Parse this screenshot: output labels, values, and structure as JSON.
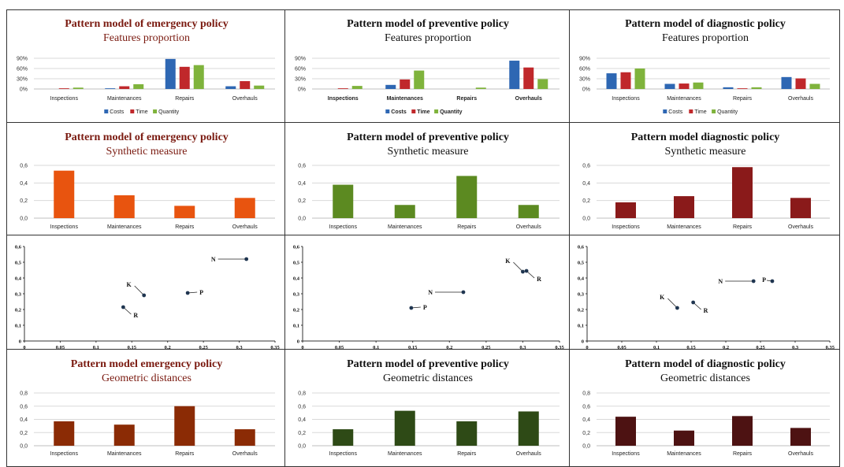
{
  "colors": {
    "costs": "#2e67b3",
    "time": "#c0282b",
    "quantity": "#7fb33c",
    "emergency": "#e8540f",
    "preventive": "#5c8a21",
    "diagnostic": "#8a1a1a",
    "geo_emergency": "#8b2b05",
    "geo_preventive": "#2e4a16",
    "geo_diagnostic": "#4d1212",
    "title_red": "#7a1a10",
    "title_black": "#111111"
  },
  "charts": [
    {
      "id": "feat-emergency",
      "type": "bar",
      "title": "Pattern model of emergency policy",
      "subtitle": "Features proportion",
      "title_color": "title_red",
      "categories": [
        "Inspections",
        "Maintenances",
        "Repairs",
        "Overhauls"
      ],
      "bold_categories": false,
      "yticks": [
        "0%",
        "30%",
        "60%",
        "90%"
      ],
      "ylim": [
        0,
        90
      ],
      "series": [
        {
          "name": "Costs",
          "color": "costs",
          "values": [
            0,
            2,
            88,
            8
          ]
        },
        {
          "name": "Time",
          "color": "time",
          "values": [
            2,
            8,
            65,
            23
          ]
        },
        {
          "name": "Quantity",
          "color": "quantity",
          "values": [
            4,
            14,
            70,
            10
          ]
        }
      ],
      "legend": [
        "Costs",
        "Time",
        "Quantity"
      ]
    },
    {
      "id": "feat-preventive",
      "type": "bar",
      "title": "Pattern model of preventive policy",
      "subtitle": "Features proportion",
      "title_color": "title_black",
      "categories": [
        "Inspections",
        "Maintenances",
        "Repairs",
        "Overhauls"
      ],
      "bold_categories": true,
      "yticks": [
        "0%",
        "30%",
        "60%",
        "90%"
      ],
      "ylim": [
        0,
        90
      ],
      "series": [
        {
          "name": "Costs",
          "color": "costs",
          "values": [
            0,
            12,
            0,
            83
          ]
        },
        {
          "name": "Time",
          "color": "time",
          "values": [
            2,
            28,
            0,
            63
          ]
        },
        {
          "name": "Quantity",
          "color": "quantity",
          "values": [
            9,
            54,
            4,
            29
          ]
        }
      ],
      "legend": [
        "Costs",
        "Time",
        "Quantity"
      ]
    },
    {
      "id": "feat-diagnostic",
      "type": "bar",
      "title": "Pattern model of diagnostic policy",
      "subtitle": "Features proportion",
      "title_color": "title_black",
      "categories": [
        "Inspections",
        "Maintenances",
        "Repairs",
        "Overhauls"
      ],
      "bold_categories": false,
      "yticks": [
        "0%",
        "30%",
        "60%",
        "90%"
      ],
      "ylim": [
        0,
        90
      ],
      "series": [
        {
          "name": "Costs",
          "color": "costs",
          "values": [
            46,
            15,
            5,
            35
          ]
        },
        {
          "name": "Time",
          "color": "time",
          "values": [
            49,
            16,
            2,
            31
          ]
        },
        {
          "name": "Quantity",
          "color": "quantity",
          "values": [
            60,
            19,
            5,
            15
          ]
        }
      ],
      "legend": [
        "Costs",
        "Time",
        "Quantity"
      ]
    },
    {
      "id": "syn-emergency",
      "type": "bar",
      "title": "Pattern model of emergency policy",
      "subtitle": "Synthetic measure",
      "title_color": "title_red",
      "categories": [
        "Inspections",
        "Maintenances",
        "Repairs",
        "Overhauls"
      ],
      "bold_categories": false,
      "yticks": [
        "0,0",
        "0,2",
        "0,4",
        "0,6"
      ],
      "ylim": [
        0,
        0.6
      ],
      "series": [
        {
          "name": "",
          "color": "emergency",
          "values": [
            0.54,
            0.26,
            0.14,
            0.23
          ]
        }
      ],
      "legend": []
    },
    {
      "id": "syn-preventive",
      "type": "bar",
      "title": "Pattern model of preventive policy",
      "subtitle": "Synthetic measure",
      "title_color": "title_black",
      "categories": [
        "Inspections",
        "Maintenances",
        "Repairs",
        "Overhauls"
      ],
      "bold_categories": false,
      "yticks": [
        "0,0",
        "0,2",
        "0,4",
        "0,6"
      ],
      "ylim": [
        0,
        0.6
      ],
      "series": [
        {
          "name": "",
          "color": "preventive",
          "values": [
            0.38,
            0.15,
            0.48,
            0.15
          ]
        }
      ],
      "legend": []
    },
    {
      "id": "syn-diagnostic",
      "type": "bar",
      "title": "Pattern model diagnostic policy",
      "subtitle": "Synthetic measure",
      "title_color": "title_black",
      "categories": [
        "Inspections",
        "Maintenances",
        "Repairs",
        "Overhauls"
      ],
      "bold_categories": false,
      "yticks": [
        "0,0",
        "0,2",
        "0,4",
        "0,6"
      ],
      "ylim": [
        0,
        0.6
      ],
      "series": [
        {
          "name": "",
          "color": "diagnostic",
          "values": [
            0.18,
            0.25,
            0.58,
            0.23
          ]
        }
      ],
      "legend": []
    },
    {
      "id": "sc-emergency",
      "type": "scatter",
      "xticks": [
        "0",
        "0,05",
        "0,1",
        "0,15",
        "0,2",
        "0,25",
        "0,3",
        "0,35"
      ],
      "xlim": [
        0,
        0.35
      ],
      "yticks": [
        "0",
        "0,1",
        "0,2",
        "0,3",
        "0,4",
        "0,5",
        "0,6"
      ],
      "ylim": [
        0,
        0.6
      ],
      "last_xtick_clip": false,
      "points": [
        {
          "label": "K",
          "x": 0.167,
          "y": 0.29,
          "label_side": "upleft"
        },
        {
          "label": "R",
          "x": 0.138,
          "y": 0.215,
          "label_side": "downright"
        },
        {
          "label": "P",
          "x": 0.228,
          "y": 0.305,
          "label_side": "right"
        },
        {
          "label": "N",
          "x": 0.31,
          "y": 0.52,
          "label_side": "left"
        }
      ]
    },
    {
      "id": "sc-preventive",
      "type": "scatter",
      "xticks": [
        "0",
        "0,05",
        "0,1",
        "0,15",
        "0,2",
        "0,25",
        "0,3",
        "0,35"
      ],
      "xlim": [
        0,
        0.35
      ],
      "yticks": [
        "0",
        "0,1",
        "0,2",
        "0,3",
        "0,4",
        "0,5",
        "0,6"
      ],
      "ylim": [
        0,
        0.6
      ],
      "last_xtick_clip": false,
      "points": [
        {
          "label": "P",
          "x": 0.148,
          "y": 0.21,
          "label_side": "right"
        },
        {
          "label": "N",
          "x": 0.219,
          "y": 0.31,
          "label_side": "left"
        },
        {
          "label": "K",
          "x": 0.3,
          "y": 0.44,
          "label_side": "upleft"
        },
        {
          "label": "R",
          "x": 0.305,
          "y": 0.445,
          "label_side": "downright"
        }
      ]
    },
    {
      "id": "sc-diagnostic",
      "type": "scatter",
      "xticks": [
        "0",
        "0,05",
        "0,1",
        "0,15",
        "0,2",
        "0,25",
        "0,3",
        "0,35"
      ],
      "xlim": [
        0,
        0.35
      ],
      "yticks": [
        "0",
        "0,1",
        "0,2",
        "0,3",
        "0,4",
        "0,5",
        "0,6"
      ],
      "ylim": [
        0,
        0.6
      ],
      "last_xtick_clip": true,
      "points": [
        {
          "label": "K",
          "x": 0.13,
          "y": 0.21,
          "label_side": "upleft"
        },
        {
          "label": "R",
          "x": 0.153,
          "y": 0.245,
          "label_side": "downright"
        },
        {
          "label": "N",
          "x": 0.24,
          "y": 0.38,
          "label_side": "left"
        },
        {
          "label": "P",
          "x": 0.267,
          "y": 0.38,
          "label_side": "leftnear"
        }
      ]
    },
    {
      "id": "geo-emergency",
      "type": "bar",
      "title": "Pattern model emergency policy",
      "subtitle": "Geometric distances",
      "title_color": "title_red",
      "categories": [
        "Inspections",
        "Maintenances",
        "Repairs",
        "Overhauls"
      ],
      "bold_categories": false,
      "yticks": [
        "0,0",
        "0,2",
        "0,4",
        "0,6",
        "0,8"
      ],
      "ylim": [
        0,
        0.8
      ],
      "series": [
        {
          "name": "",
          "color": "geo_emergency",
          "values": [
            0.37,
            0.32,
            0.6,
            0.25
          ]
        }
      ],
      "legend": []
    },
    {
      "id": "geo-preventive",
      "type": "bar",
      "title_parts": [
        "Pattern model of",
        " preventive policy"
      ],
      "title": "Pattern model of preventive policy",
      "subtitle": "Geometric distances",
      "title_color": "title_black",
      "categories": [
        "Inspections",
        "Maintenances",
        "Repairs",
        "Overhauls"
      ],
      "bold_categories": false,
      "yticks": [
        "0,0",
        "0,2",
        "0,4",
        "0,6",
        "0,8"
      ],
      "ylim": [
        0,
        0.8
      ],
      "series": [
        {
          "name": "",
          "color": "geo_preventive",
          "values": [
            0.25,
            0.53,
            0.37,
            0.52
          ]
        }
      ],
      "legend": []
    },
    {
      "id": "geo-diagnostic",
      "type": "bar",
      "title": "Pattern model of diagnostic policy",
      "subtitle": "Geometric distances",
      "title_color": "title_black",
      "categories": [
        "Inspections",
        "Maintenances",
        "Repairs",
        "Overhauls"
      ],
      "bold_categories": false,
      "yticks": [
        "0,0",
        "0,2",
        "0,4",
        "0,6",
        "0,8"
      ],
      "ylim": [
        0,
        0.8
      ],
      "series": [
        {
          "name": "",
          "color": "geo_diagnostic",
          "values": [
            0.44,
            0.23,
            0.45,
            0.27
          ]
        }
      ],
      "legend": []
    }
  ],
  "chart_data": [
    {
      "type": "bar",
      "title": "Pattern model of emergency policy",
      "subtitle": "Features proportion",
      "categories": [
        "Inspections",
        "Maintenances",
        "Repairs",
        "Overhauls"
      ],
      "series": [
        {
          "name": "Costs",
          "values": [
            0,
            2,
            88,
            8
          ]
        },
        {
          "name": "Time",
          "values": [
            2,
            8,
            65,
            23
          ]
        },
        {
          "name": "Quantity",
          "values": [
            4,
            14,
            70,
            10
          ]
        }
      ],
      "ylim": [
        0,
        90
      ]
    },
    {
      "type": "bar",
      "title": "Pattern model of preventive policy",
      "subtitle": "Features proportion",
      "categories": [
        "Inspections",
        "Maintenances",
        "Repairs",
        "Overhauls"
      ],
      "series": [
        {
          "name": "Costs",
          "values": [
            0,
            12,
            0,
            83
          ]
        },
        {
          "name": "Time",
          "values": [
            2,
            28,
            0,
            63
          ]
        },
        {
          "name": "Quantity",
          "values": [
            9,
            54,
            4,
            29
          ]
        }
      ],
      "ylim": [
        0,
        90
      ]
    },
    {
      "type": "bar",
      "title": "Pattern model of diagnostic policy",
      "subtitle": "Features proportion",
      "categories": [
        "Inspections",
        "Maintenances",
        "Repairs",
        "Overhauls"
      ],
      "series": [
        {
          "name": "Costs",
          "values": [
            46,
            15,
            5,
            35
          ]
        },
        {
          "name": "Time",
          "values": [
            49,
            16,
            2,
            31
          ]
        },
        {
          "name": "Quantity",
          "values": [
            60,
            19,
            5,
            15
          ]
        }
      ],
      "ylim": [
        0,
        90
      ]
    },
    {
      "type": "bar",
      "title": "Pattern model of emergency policy",
      "subtitle": "Synthetic measure",
      "categories": [
        "Inspections",
        "Maintenances",
        "Repairs",
        "Overhauls"
      ],
      "values": [
        0.54,
        0.26,
        0.14,
        0.23
      ],
      "ylim": [
        0,
        0.6
      ]
    },
    {
      "type": "bar",
      "title": "Pattern model of preventive policy",
      "subtitle": "Synthetic measure",
      "categories": [
        "Inspections",
        "Maintenances",
        "Repairs",
        "Overhauls"
      ],
      "values": [
        0.38,
        0.15,
        0.48,
        0.15
      ],
      "ylim": [
        0,
        0.6
      ]
    },
    {
      "type": "bar",
      "title": "Pattern model diagnostic policy",
      "subtitle": "Synthetic measure",
      "categories": [
        "Inspections",
        "Maintenances",
        "Repairs",
        "Overhauls"
      ],
      "values": [
        0.18,
        0.25,
        0.58,
        0.23
      ],
      "ylim": [
        0,
        0.6
      ]
    },
    {
      "type": "scatter",
      "points": [
        {
          "label": "K",
          "x": 0.167,
          "y": 0.29
        },
        {
          "label": "R",
          "x": 0.138,
          "y": 0.215
        },
        {
          "label": "P",
          "x": 0.228,
          "y": 0.305
        },
        {
          "label": "N",
          "x": 0.31,
          "y": 0.52
        }
      ],
      "xlim": [
        0,
        0.35
      ],
      "ylim": [
        0,
        0.6
      ]
    },
    {
      "type": "scatter",
      "points": [
        {
          "label": "P",
          "x": 0.148,
          "y": 0.21
        },
        {
          "label": "N",
          "x": 0.219,
          "y": 0.31
        },
        {
          "label": "K",
          "x": 0.3,
          "y": 0.44
        },
        {
          "label": "R",
          "x": 0.305,
          "y": 0.445
        }
      ],
      "xlim": [
        0,
        0.35
      ],
      "ylim": [
        0,
        0.6
      ]
    },
    {
      "type": "scatter",
      "points": [
        {
          "label": "K",
          "x": 0.13,
          "y": 0.21
        },
        {
          "label": "R",
          "x": 0.153,
          "y": 0.245
        },
        {
          "label": "N",
          "x": 0.24,
          "y": 0.38
        },
        {
          "label": "P",
          "x": 0.267,
          "y": 0.38
        }
      ],
      "xlim": [
        0,
        0.35
      ],
      "ylim": [
        0,
        0.6
      ]
    },
    {
      "type": "bar",
      "title": "Pattern model emergency policy",
      "subtitle": "Geometric distances",
      "categories": [
        "Inspections",
        "Maintenances",
        "Repairs",
        "Overhauls"
      ],
      "values": [
        0.37,
        0.32,
        0.6,
        0.25
      ],
      "ylim": [
        0,
        0.8
      ]
    },
    {
      "type": "bar",
      "title": "Pattern model of preventive policy",
      "subtitle": "Geometric distances",
      "categories": [
        "Inspections",
        "Maintenances",
        "Repairs",
        "Overhauls"
      ],
      "values": [
        0.25,
        0.53,
        0.37,
        0.52
      ],
      "ylim": [
        0,
        0.8
      ]
    },
    {
      "type": "bar",
      "title": "Pattern model of diagnostic policy",
      "subtitle": "Geometric distances",
      "categories": [
        "Inspections",
        "Maintenances",
        "Repairs",
        "Overhauls"
      ],
      "values": [
        0.44,
        0.23,
        0.45,
        0.27
      ],
      "ylim": [
        0,
        0.8
      ]
    }
  ]
}
